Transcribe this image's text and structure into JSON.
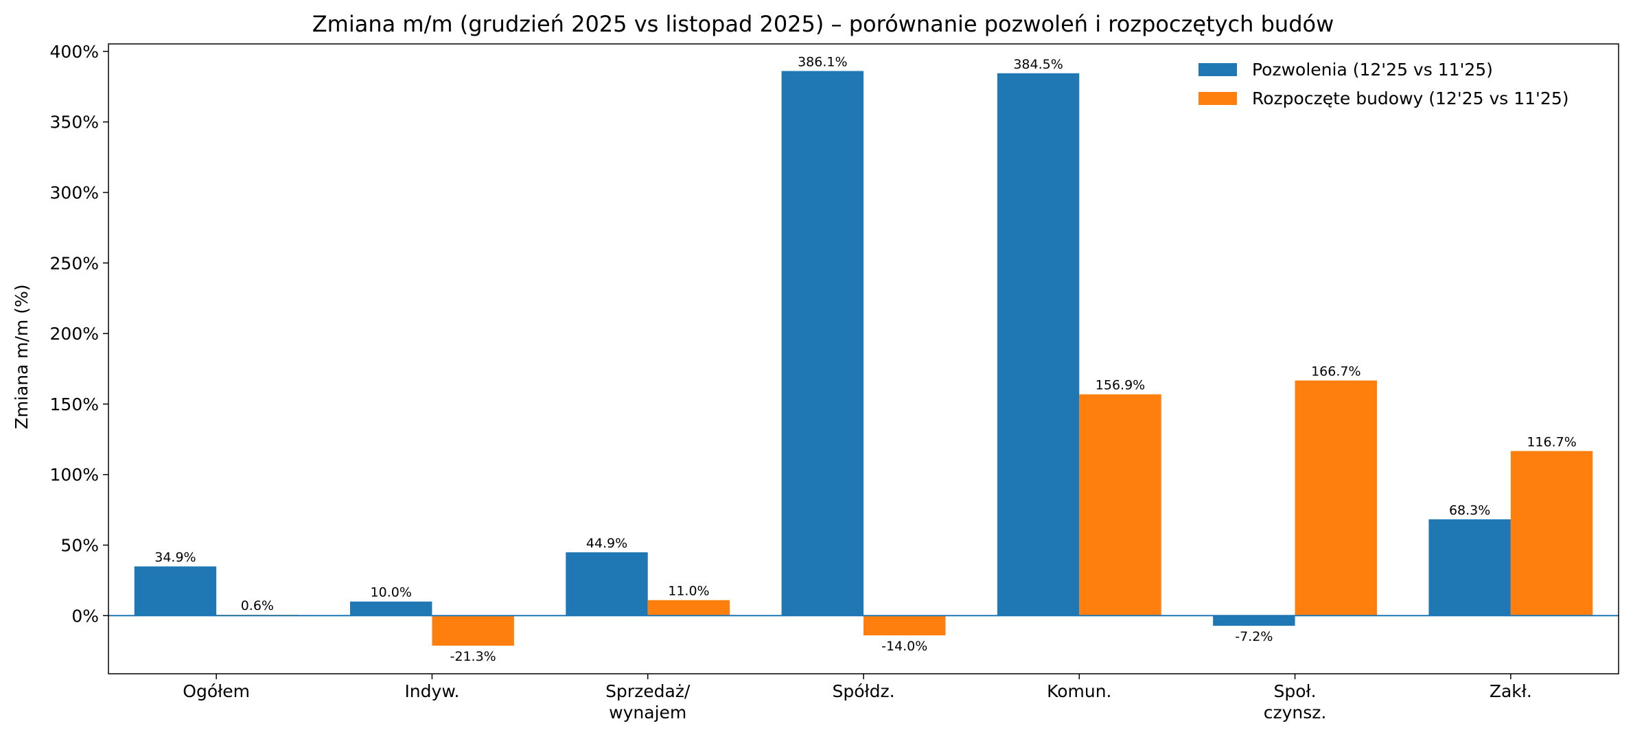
{
  "chart_data": {
    "type": "bar",
    "title": "Zmiana m/m (grudzień 2025 vs listopad 2025) – porównanie pozwoleń i rozpoczętych budów",
    "xlabel": "",
    "ylabel": "Zmiana m/m (%)",
    "categories": [
      [
        "Ogółem"
      ],
      [
        "Indyw."
      ],
      [
        "Sprzedaż/",
        "wynajem"
      ],
      [
        "Spółdz."
      ],
      [
        "Komun."
      ],
      [
        "Społ.",
        "czynsz."
      ],
      [
        "Zakł."
      ]
    ],
    "series": [
      {
        "name": "Pozwolenia (12'25 vs 11'25)",
        "color": "#1f77b4",
        "values": [
          34.9,
          10.0,
          44.9,
          386.1,
          384.5,
          -7.2,
          68.3
        ],
        "labels": [
          "34.9%",
          "10.0%",
          "44.9%",
          "386.1%",
          "384.5%",
          "-7.2%",
          "68.3%"
        ]
      },
      {
        "name": "Rozpoczęte budowy (12'25 vs 11'25)",
        "color": "#ff7f0e",
        "values": [
          0.6,
          -21.3,
          11.0,
          -14.0,
          156.9,
          166.7,
          116.7
        ],
        "labels": [
          "0.6%",
          "-21.3%",
          "11.0%",
          "-14.0%",
          "156.9%",
          "166.7%",
          "116.7%"
        ]
      }
    ],
    "ylim": [
      -41.2,
      405.3
    ],
    "yticks": [
      0,
      50,
      100,
      150,
      200,
      250,
      300,
      350,
      400
    ],
    "ytick_labels": [
      "0%",
      "50%",
      "100%",
      "150%",
      "200%",
      "250%",
      "300%",
      "350%",
      "400%"
    ],
    "zero_line": true,
    "zero_line_color": "#1f77b4",
    "grid": false,
    "legend_position": "top-right"
  }
}
